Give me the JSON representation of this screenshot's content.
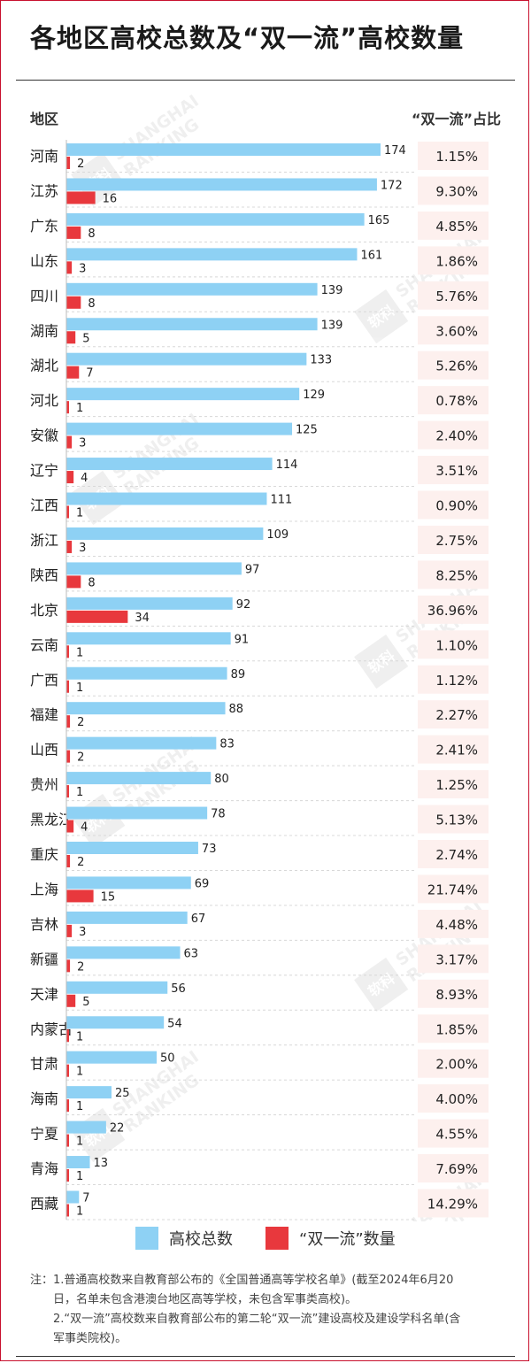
{
  "header": {
    "title": "各地区高校总数及“双一流”高校数量",
    "col_region": "地区",
    "col_ratio": "“双一流”占比"
  },
  "legend": {
    "total_label": "高校总数",
    "dfc_label": "“双一流”数量"
  },
  "watermark": {
    "line1": "SHANGHAI",
    "line2": "RANKING",
    "mark": "软科"
  },
  "notes": {
    "lines": [
      "注：1.普通高校数来自教育部公布的《全国普通高等学校名单》(截至2024年6月20",
      "日，名单未包含港澳台地区高等学校，未包含军事类高校)。",
      "2.“双一流”高校数来自教育部公布的第二轮“双一流”建设高校及建设学科名单(含",
      "军事类院校)。"
    ]
  },
  "chart_data": {
    "type": "bar",
    "orientation": "horizontal",
    "xlim": [
      0,
      174
    ],
    "grid": false,
    "legend_position": "bottom",
    "colors": {
      "total": "#8ed1f4",
      "dfc": "#e8383d",
      "ratio_bg": "#fdf0ee"
    },
    "categories": [
      "河南",
      "江苏",
      "广东",
      "山东",
      "四川",
      "湖南",
      "湖北",
      "河北",
      "安徽",
      "辽宁",
      "江西",
      "浙江",
      "陕西",
      "北京",
      "云南",
      "广西",
      "福建",
      "山西",
      "贵州",
      "黑龙江",
      "重庆",
      "上海",
      "吉林",
      "新疆",
      "天津",
      "内蒙古",
      "甘肃",
      "海南",
      "宁夏",
      "青海",
      "西藏"
    ],
    "series": [
      {
        "name": "高校总数",
        "values": [
          174,
          172,
          165,
          161,
          139,
          139,
          133,
          129,
          125,
          114,
          111,
          109,
          97,
          92,
          91,
          89,
          88,
          83,
          80,
          78,
          73,
          69,
          67,
          63,
          56,
          54,
          50,
          25,
          22,
          13,
          7
        ]
      },
      {
        "name": "“双一流”数量",
        "values": [
          2,
          16,
          8,
          3,
          8,
          5,
          7,
          1,
          3,
          4,
          1,
          3,
          8,
          34,
          1,
          1,
          2,
          2,
          1,
          4,
          2,
          15,
          3,
          2,
          5,
          1,
          1,
          1,
          1,
          1,
          1
        ]
      }
    ],
    "ratio_labels": [
      "1.15%",
      "9.30%",
      "4.85%",
      "1.86%",
      "5.76%",
      "3.60%",
      "5.26%",
      "0.78%",
      "2.40%",
      "3.51%",
      "0.90%",
      "2.75%",
      "8.25%",
      "36.96%",
      "1.10%",
      "1.12%",
      "2.27%",
      "2.41%",
      "1.25%",
      "5.13%",
      "2.74%",
      "21.74%",
      "4.48%",
      "3.17%",
      "8.93%",
      "1.85%",
      "2.00%",
      "4.00%",
      "4.55%",
      "7.69%",
      "14.29%"
    ]
  }
}
